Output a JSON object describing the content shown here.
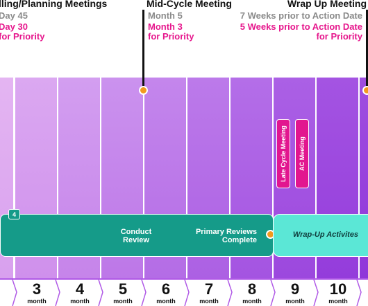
{
  "milestones": {
    "planning": {
      "title": "lling/Planning Meetings",
      "line1": "Day 45",
      "line2": "Day 30",
      "line3": "for Priority"
    },
    "mid_cycle": {
      "title": "Mid-Cycle Meeting",
      "line1": "Month 5",
      "line2": "Month 3",
      "line3": "for Priority"
    },
    "wrap_up": {
      "title": "Wrap Up Meeting",
      "line1": "7 Weeks prior to Action Date",
      "line2": "5 Weeks prior to Action Date",
      "line3": "for Priority"
    }
  },
  "vertical_labels": {
    "late_cycle": "Late Cycle Meeting",
    "ac": "AC Meeting"
  },
  "bands": {
    "review": {
      "badge": "4",
      "conduct": "Conduct Review",
      "primary": "Primary Reviews Complete"
    },
    "wrap_up": {
      "label": "Wrap-Up Activites"
    }
  },
  "timeline": {
    "months": [
      {
        "num": "3",
        "word": "month"
      },
      {
        "num": "4",
        "word": "month"
      },
      {
        "num": "5",
        "word": "month"
      },
      {
        "num": "6",
        "word": "month"
      },
      {
        "num": "7",
        "word": "month"
      },
      {
        "num": "8",
        "word": "month"
      },
      {
        "num": "9",
        "word": "month"
      },
      {
        "num": "10",
        "word": "month"
      }
    ]
  },
  "colors": {
    "milestone_dot": "#f39a1e",
    "priority_text": "#e6168c",
    "review_band": "#159b89",
    "wrap_band": "#5be7d6",
    "meeting_label": "#e2168f"
  }
}
